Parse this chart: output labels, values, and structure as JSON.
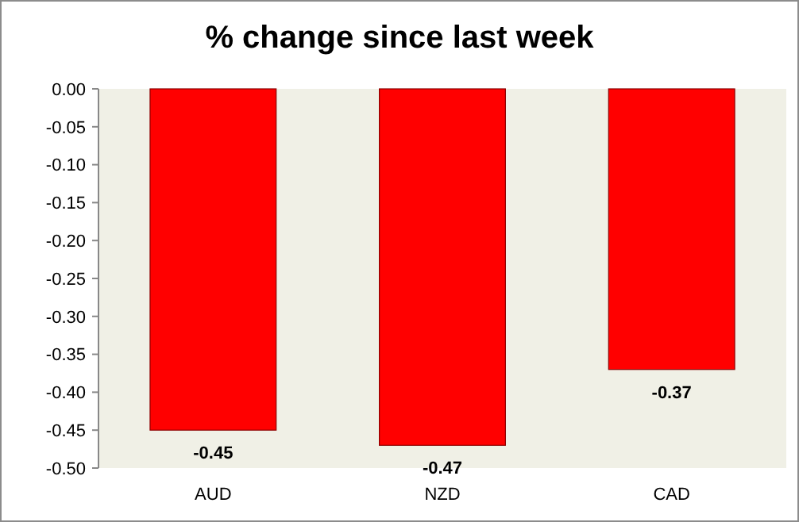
{
  "chart_data": {
    "type": "bar",
    "title": "% change since last week",
    "categories": [
      "AUD",
      "NZD",
      "CAD"
    ],
    "values": [
      -0.45,
      -0.47,
      -0.37
    ],
    "color": "#ff0000",
    "ylim": [
      -0.5,
      0
    ],
    "yticks": [
      {
        "value": 0,
        "label": "0.00"
      },
      {
        "value": -0.05,
        "label": "-0.05"
      },
      {
        "value": -0.1,
        "label": "-0.10"
      },
      {
        "value": -0.15,
        "label": "-0.15"
      },
      {
        "value": -0.2,
        "label": "-0.20"
      },
      {
        "value": -0.25,
        "label": "-0.25"
      },
      {
        "value": -0.3,
        "label": "-0.30"
      },
      {
        "value": -0.35,
        "label": "-0.35"
      },
      {
        "value": -0.4,
        "label": "-0.40"
      },
      {
        "value": -0.45,
        "label": "-0.45"
      },
      {
        "value": -0.5,
        "label": "-0.50"
      }
    ],
    "data_labels": true
  }
}
